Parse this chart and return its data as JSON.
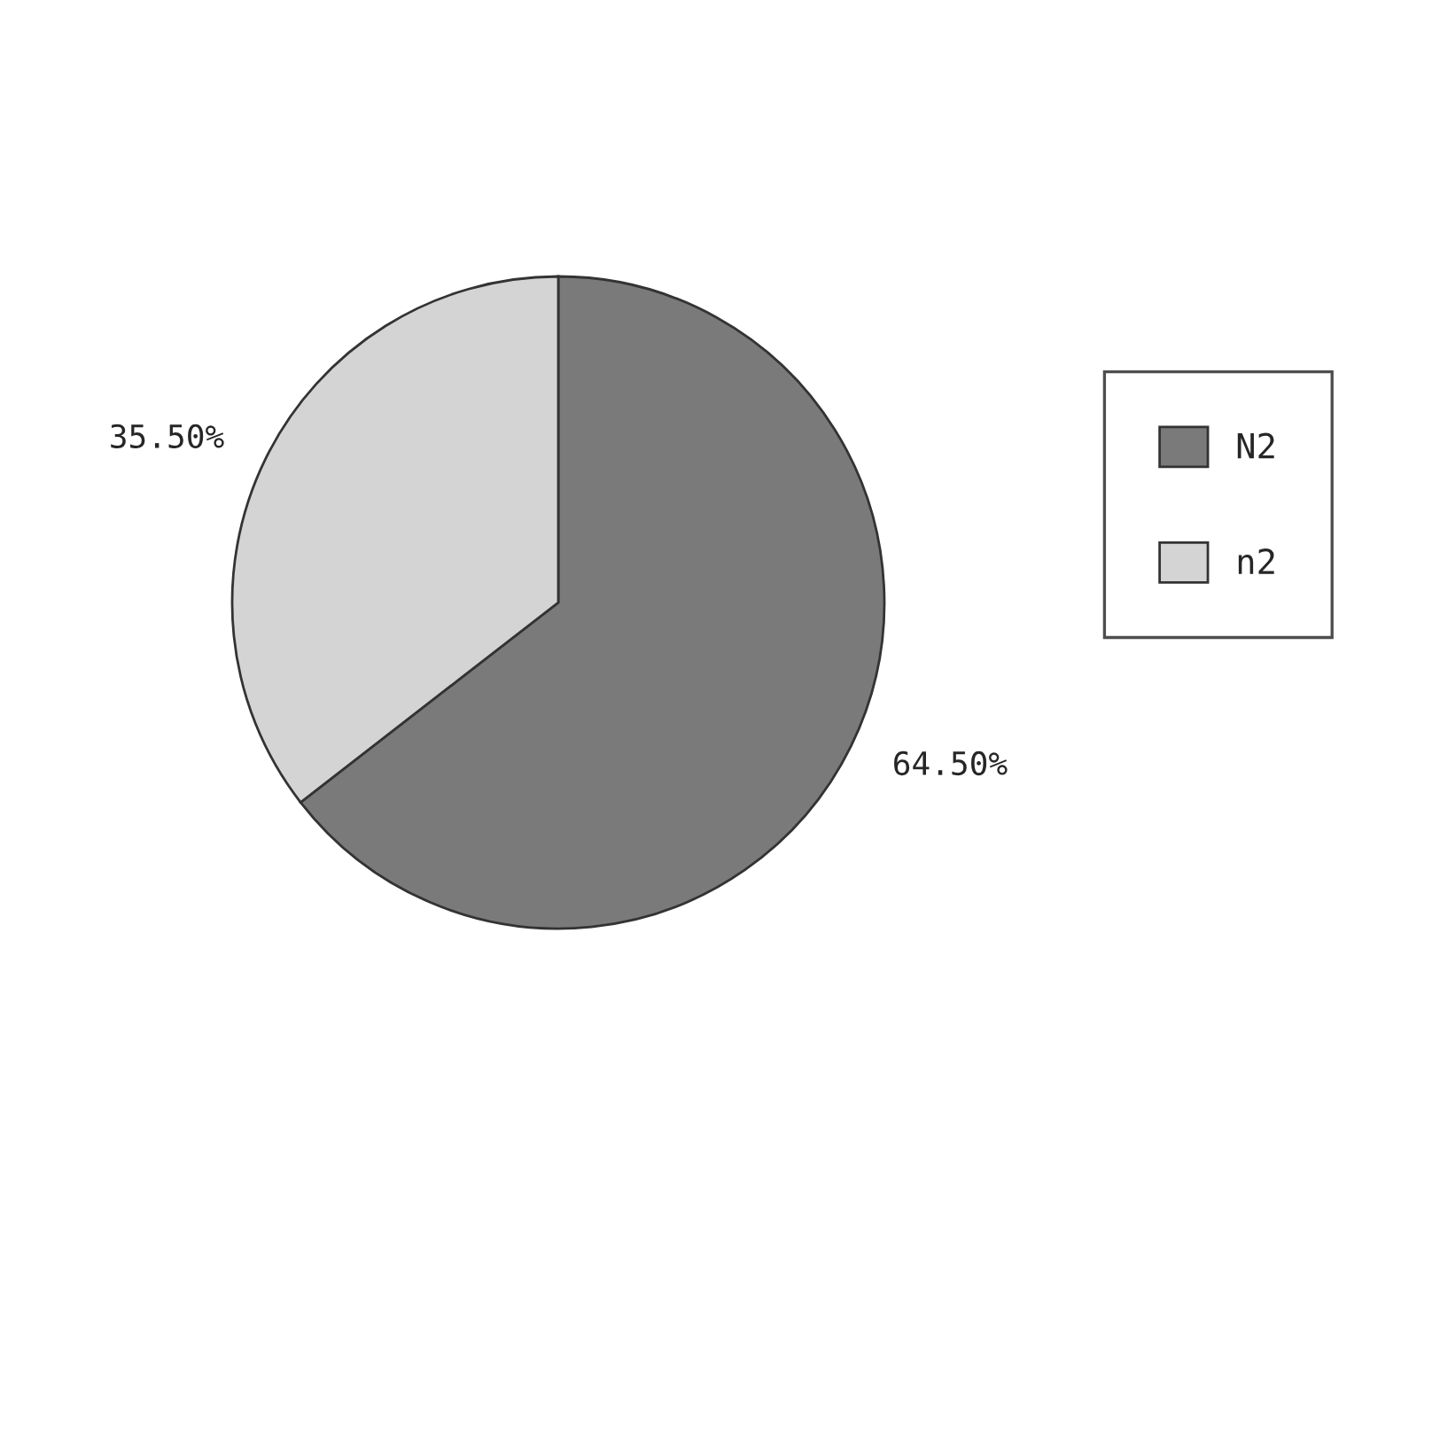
{
  "chart_data": {
    "type": "pie",
    "categories": [
      "N2",
      "n2"
    ],
    "values": [
      64.5,
      35.5
    ],
    "colors": [
      "#7a7a7a",
      "#d4d4d4"
    ],
    "value_labels": [
      "64.50%",
      "35.50%"
    ],
    "legend": "right"
  }
}
